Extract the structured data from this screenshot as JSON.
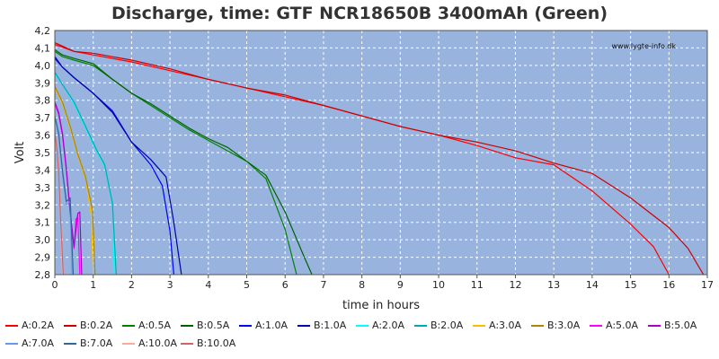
{
  "chart_data": {
    "type": "line",
    "title": "Discharge, time: GTF NCR18650B 3400mAh (Green)",
    "watermark": "www.lygte-info.dk",
    "xlabel": "time in hours",
    "ylabel": "Volt",
    "xlim": [
      0,
      17
    ],
    "ylim": [
      2.8,
      4.2
    ],
    "x_ticks": [
      "0",
      "1",
      "2",
      "3",
      "4",
      "5",
      "6",
      "7",
      "8",
      "9",
      "10",
      "11",
      "12",
      "13",
      "14",
      "15",
      "16",
      "17"
    ],
    "y_ticks": [
      "2,8",
      "2,9",
      "3,0",
      "3,1",
      "3,2",
      "3,3",
      "3,4",
      "3,5",
      "3,6",
      "3,7",
      "3,8",
      "3,9",
      "4,0",
      "4,1",
      "4,2"
    ],
    "grid": true,
    "plot_background": "#98b4de",
    "legend_position": "bottom",
    "series": [
      {
        "name": "A:0.2A",
        "color": "#ff0000",
        "x": [
          0,
          0.5,
          1,
          2,
          3,
          4,
          5,
          6,
          7,
          8,
          9,
          10,
          11,
          12,
          13,
          14,
          15,
          15.6,
          16.0
        ],
        "y": [
          4.12,
          4.08,
          4.06,
          4.02,
          3.97,
          3.92,
          3.87,
          3.82,
          3.77,
          3.71,
          3.65,
          3.6,
          3.54,
          3.47,
          3.43,
          3.28,
          3.09,
          2.96,
          2.8
        ]
      },
      {
        "name": "B:0.2A",
        "color": "#cc0000",
        "x": [
          0,
          0.5,
          1,
          2,
          3,
          4,
          5,
          6,
          7,
          8,
          9,
          10,
          11,
          12,
          13,
          14,
          15,
          16,
          16.5,
          16.9
        ],
        "y": [
          4.13,
          4.08,
          4.07,
          4.03,
          3.98,
          3.92,
          3.87,
          3.83,
          3.77,
          3.71,
          3.65,
          3.6,
          3.56,
          3.51,
          3.44,
          3.38,
          3.24,
          3.07,
          2.95,
          2.8
        ]
      },
      {
        "name": "A:0.5A",
        "color": "#008000",
        "x": [
          0,
          0.2,
          0.5,
          1,
          1.5,
          2,
          2.5,
          3,
          3.5,
          4,
          4.5,
          5,
          5.5,
          6,
          6.3
        ],
        "y": [
          4.08,
          4.05,
          4.03,
          4.0,
          3.92,
          3.84,
          3.77,
          3.7,
          3.63,
          3.57,
          3.51,
          3.45,
          3.35,
          3.06,
          2.8
        ]
      },
      {
        "name": "B:0.5A",
        "color": "#006000",
        "x": [
          0,
          0.2,
          0.5,
          1,
          1.5,
          2,
          2.5,
          3,
          3.5,
          4,
          4.5,
          5,
          5.5,
          6,
          6.5,
          6.7
        ],
        "y": [
          4.09,
          4.06,
          4.04,
          4.01,
          3.92,
          3.84,
          3.78,
          3.71,
          3.64,
          3.58,
          3.53,
          3.45,
          3.37,
          3.16,
          2.9,
          2.8
        ]
      },
      {
        "name": "A:1.0A",
        "color": "#0000ff",
        "x": [
          0,
          0.2,
          0.5,
          1,
          1.5,
          2,
          2.5,
          2.8,
          3.0,
          3.1
        ],
        "y": [
          4.04,
          3.99,
          3.93,
          3.84,
          3.74,
          3.56,
          3.43,
          3.31,
          3.05,
          2.8
        ]
      },
      {
        "name": "B:1.0A",
        "color": "#0000aa",
        "x": [
          0,
          0.2,
          0.5,
          1,
          1.5,
          2,
          2.5,
          2.9,
          3.1,
          3.3
        ],
        "y": [
          4.05,
          3.99,
          3.93,
          3.84,
          3.73,
          3.56,
          3.46,
          3.36,
          3.1,
          2.8
        ]
      },
      {
        "name": "A:2.0A",
        "color": "#00ffff",
        "x": [
          0,
          0.2,
          0.5,
          0.8,
          1.1,
          1.3,
          1.5,
          1.55
        ],
        "y": [
          3.95,
          3.89,
          3.78,
          3.64,
          3.5,
          3.42,
          3.2,
          2.8
        ]
      },
      {
        "name": "B:2.0A",
        "color": "#00aaaa",
        "x": [
          0,
          0.2,
          0.5,
          0.8,
          1.1,
          1.3,
          1.5,
          1.6
        ],
        "y": [
          3.96,
          3.89,
          3.79,
          3.65,
          3.51,
          3.43,
          3.21,
          2.8
        ]
      },
      {
        "name": "A:3.0A",
        "color": "#ffbb00",
        "x": [
          0,
          0.2,
          0.4,
          0.6,
          0.8,
          0.95,
          1.0
        ],
        "y": [
          3.87,
          3.78,
          3.64,
          3.48,
          3.35,
          3.14,
          2.8
        ]
      },
      {
        "name": "B:3.0A",
        "color": "#aa8800",
        "x": [
          0,
          0.2,
          0.4,
          0.6,
          0.8,
          0.98,
          1.05
        ],
        "y": [
          3.88,
          3.79,
          3.65,
          3.49,
          3.36,
          3.17,
          2.8
        ]
      },
      {
        "name": "A:5.0A",
        "color": "#ff00ff",
        "x": [
          0,
          0.1,
          0.2,
          0.3,
          0.4,
          0.5,
          0.55,
          0.6,
          0.65
        ],
        "y": [
          3.78,
          3.72,
          3.6,
          3.4,
          3.15,
          2.95,
          3.12,
          3.13,
          2.8
        ]
      },
      {
        "name": "B:5.0A",
        "color": "#aa00cc",
        "x": [
          0,
          0.1,
          0.2,
          0.3,
          0.4,
          0.5,
          0.6,
          0.65,
          0.7
        ],
        "y": [
          3.79,
          3.73,
          3.61,
          3.41,
          3.16,
          2.96,
          3.15,
          3.16,
          2.8
        ]
      },
      {
        "name": "A:7.0A",
        "color": "#6699ee",
        "x": [
          0,
          0.1,
          0.2,
          0.3,
          0.4,
          0.45
        ],
        "y": [
          3.7,
          3.6,
          3.38,
          3.2,
          3.22,
          2.8
        ]
      },
      {
        "name": "B:7.0A",
        "color": "#336699",
        "x": [
          0,
          0.1,
          0.2,
          0.3,
          0.4,
          0.48
        ],
        "y": [
          3.71,
          3.61,
          3.4,
          3.22,
          3.24,
          2.8
        ]
      },
      {
        "name": "A:10.0A",
        "color": "#ffaa99",
        "x": [
          0,
          0.05,
          0.1,
          0.15,
          0.2
        ],
        "y": [
          3.6,
          3.52,
          3.38,
          3.1,
          2.8
        ]
      },
      {
        "name": "B:10.0A",
        "color": "#cc6666",
        "x": [
          0,
          0.05,
          0.1,
          0.15,
          0.22
        ],
        "y": [
          3.61,
          3.53,
          3.39,
          3.12,
          2.8
        ]
      }
    ]
  }
}
